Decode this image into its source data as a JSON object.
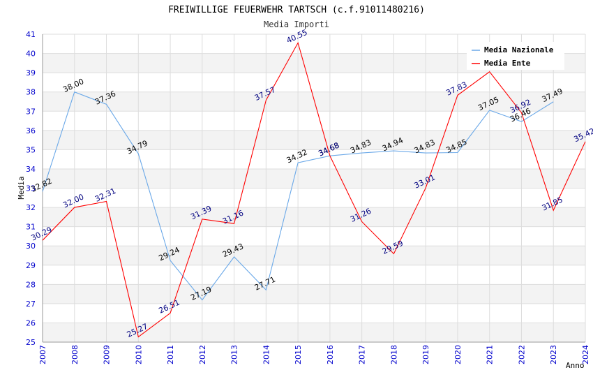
{
  "chart_data": {
    "type": "line",
    "title": "FREIWILLIGE FEUERWEHR TARTSCH (c.f.91011480216)",
    "subtitle": "Media Importi",
    "xlabel": "Anno",
    "ylabel": "Media",
    "ylim": [
      25,
      41
    ],
    "grid": true,
    "legend_position": "top-right",
    "categories": [
      "2007",
      "2008",
      "2009",
      "2010",
      "2011",
      "2012",
      "2013",
      "2014",
      "2015",
      "2016",
      "2017",
      "2018",
      "2019",
      "2020",
      "2021",
      "2022",
      "2023",
      "2024"
    ],
    "y_ticks": [
      "25",
      "26",
      "27",
      "28",
      "29",
      "30",
      "31",
      "32",
      "33",
      "34",
      "35",
      "36",
      "37",
      "38",
      "39",
      "40",
      "41"
    ],
    "series": [
      {
        "name": "Media Nazionale",
        "color": "#6aa8e8",
        "label_color": "#000000",
        "values": [
          32.82,
          38.0,
          37.36,
          34.79,
          29.24,
          27.19,
          29.43,
          27.71,
          34.32,
          34.68,
          34.83,
          34.94,
          34.83,
          34.85,
          37.05,
          36.46,
          37.49,
          null
        ],
        "labels": [
          "32.82",
          "38.00",
          "37.36",
          "34.79",
          "29.24",
          "27.19",
          "29.43",
          "27.71",
          "34.32",
          "34.68",
          "34.83",
          "34.94",
          "34.83",
          "34.85",
          "37.05",
          "36.46",
          "37.49",
          ""
        ]
      },
      {
        "name": "Media Ente",
        "color": "#ff0000",
        "label_color": "#000080",
        "values": [
          30.29,
          32.0,
          32.31,
          25.27,
          26.51,
          31.39,
          31.16,
          37.57,
          40.55,
          34.68,
          31.26,
          29.59,
          33.01,
          37.83,
          39.05,
          36.92,
          31.85,
          35.42
        ],
        "labels": [
          "30.29",
          "32.00",
          "32.31",
          "25.27",
          "26.51",
          "31.39",
          "31.16",
          "37.57",
          "40.55",
          "34.68",
          "31.26",
          "29.59",
          "33.01",
          "37.83",
          "",
          "36.92",
          "31.85",
          "35.42"
        ]
      }
    ]
  }
}
